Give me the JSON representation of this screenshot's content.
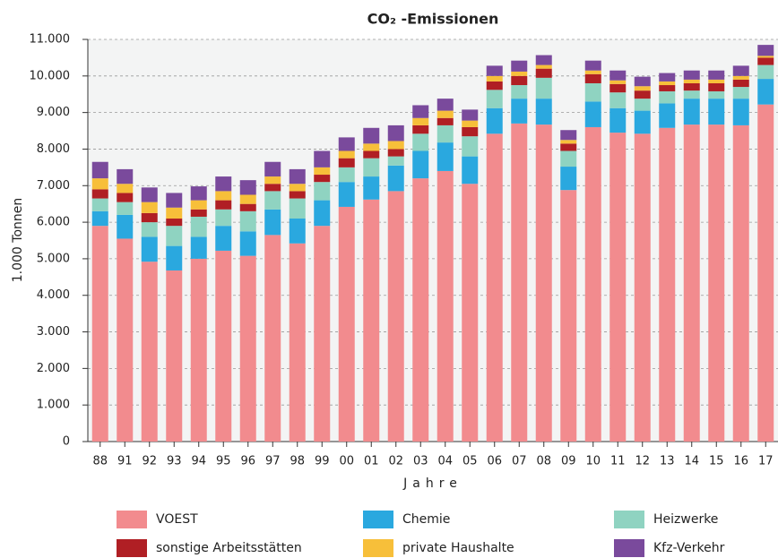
{
  "chart_data": {
    "type": "stacked_bar",
    "title": "CO₂ -Emissionen",
    "x_label": "Jahre",
    "y_label": "1.000 Tonnen",
    "categories": [
      "88",
      "91",
      "92",
      "93",
      "94",
      "95",
      "96",
      "97",
      "98",
      "99",
      "00",
      "01",
      "02",
      "03",
      "04",
      "05",
      "06",
      "07",
      "08",
      "09",
      "10",
      "11",
      "12",
      "13",
      "14",
      "15",
      "16",
      "17"
    ],
    "ylim": [
      0,
      11000
    ],
    "yticks": [
      0,
      {
        "value": 1000,
        "label": "1.000"
      },
      {
        "value": 2000,
        "label": "2.000"
      },
      {
        "value": 3000,
        "label": "3.000"
      },
      {
        "value": 4000,
        "label": "4.000"
      },
      {
        "value": 5000,
        "label": "5.000"
      },
      {
        "value": 6000,
        "label": "6.000"
      },
      {
        "value": 7000,
        "label": "7.000"
      },
      {
        "value": 8000,
        "label": "8.000"
      },
      {
        "value": 9000,
        "label": "9.000"
      },
      {
        "value": 10000,
        "label": "10.000"
      },
      {
        "value": 11000,
        "label": "11.000"
      }
    ],
    "grid": true,
    "series": [
      {
        "name": "VOEST",
        "color": "#f28b8e",
        "values": [
          5900,
          5550,
          4920,
          4680,
          5000,
          5220,
          5080,
          5650,
          5420,
          5900,
          6420,
          6620,
          6850,
          7200,
          7400,
          7050,
          8420,
          8700,
          8670,
          6880,
          8600,
          8450,
          8420,
          8580,
          8670,
          8670,
          8650,
          9220
        ]
      },
      {
        "name": "Chemie",
        "color": "#2aa8df",
        "values": [
          400,
          650,
          680,
          670,
          600,
          680,
          670,
          700,
          680,
          700,
          680,
          630,
          700,
          750,
          780,
          750,
          700,
          680,
          710,
          640,
          700,
          670,
          630,
          670,
          710,
          710,
          730,
          700
        ]
      },
      {
        "name": "Heizwerke",
        "color": "#8fd3c1",
        "values": [
          350,
          350,
          400,
          550,
          550,
          450,
          550,
          500,
          550,
          500,
          400,
          500,
          250,
          470,
          470,
          550,
          500,
          370,
          570,
          430,
          500,
          430,
          330,
          330,
          220,
          200,
          320,
          380
        ]
      },
      {
        "name": "sonstige Arbeitsstätten",
        "color": "#b01f24",
        "values": [
          250,
          250,
          250,
          200,
          200,
          250,
          200,
          200,
          200,
          200,
          250,
          200,
          200,
          230,
          200,
          250,
          230,
          250,
          250,
          200,
          250,
          230,
          220,
          170,
          200,
          220,
          200,
          200
        ]
      },
      {
        "name": "private Haushalte",
        "color": "#f7bf3a",
        "values": [
          300,
          250,
          300,
          300,
          250,
          250,
          250,
          200,
          200,
          200,
          200,
          200,
          220,
          200,
          200,
          180,
          150,
          120,
          100,
          100,
          100,
          100,
          120,
          100,
          100,
          100,
          100,
          50
        ]
      },
      {
        "name": "Kfz-Verkehr",
        "color": "#7a4a9c",
        "values": [
          450,
          400,
          400,
          400,
          380,
          400,
          400,
          400,
          400,
          450,
          370,
          430,
          430,
          350,
          330,
          300,
          280,
          300,
          270,
          270,
          270,
          270,
          260,
          230,
          250,
          250,
          280,
          300
        ]
      }
    ]
  }
}
